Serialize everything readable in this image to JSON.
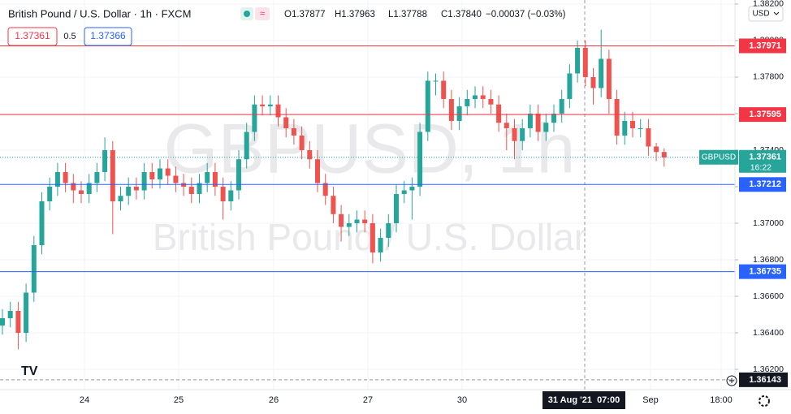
{
  "chart_data": {
    "type": "candlestick",
    "title": "British Pound / U.S. Dollar · 1h · FXCM",
    "ohlc_legend": [
      "O1.37877",
      "H1.37963",
      "L1.37788",
      "C1.37840",
      "−0.00037 (−0.03%)"
    ],
    "trade": {
      "sell": "1.37361",
      "spread": "0.5",
      "buy": "1.37366"
    },
    "currency": "USD",
    "watermark": [
      "GBPUSD, 1h",
      "British Pound / U.S. Dollar"
    ],
    "up_color": "#26a69a",
    "down_color": "#ef5350",
    "open": [
      1.3644,
      1.3648,
      1.3652,
      1.364,
      1.3662,
      1.3688,
      1.3712,
      1.372,
      1.3728,
      1.3722,
      1.3718,
      1.3716,
      1.3722,
      1.3728,
      1.374,
      1.3712,
      1.3715,
      1.372,
      1.3718,
      1.3728,
      1.3724,
      1.373,
      1.3726,
      1.3722,
      1.372,
      1.3716,
      1.3722,
      1.3728,
      1.372,
      1.3712,
      1.3718,
      1.3735,
      1.375,
      1.3765,
      1.3764,
      1.3765,
      1.3758,
      1.3752,
      1.3748,
      1.374,
      1.3735,
      1.3722,
      1.3715,
      1.3705,
      1.3698,
      1.37,
      1.3702,
      1.37,
      1.3684,
      1.3692,
      1.37,
      1.3716,
      1.3718,
      1.372,
      1.375,
      1.3778,
      1.3778,
      1.3768,
      1.3756,
      1.3764,
      1.3768,
      1.377,
      1.3768,
      1.3765,
      1.3755,
      1.3752,
      1.3745,
      1.3752,
      1.376,
      1.375,
      1.3755,
      1.376,
      1.3768,
      1.3782,
      1.3796,
      1.378,
      1.3774,
      1.379,
      1.3768,
      1.3748,
      1.3756,
      1.3752,
      1.3752,
      1.3742,
      1.3739
    ],
    "high": [
      1.3653,
      1.3657,
      1.3657,
      1.3667,
      1.3693,
      1.3717,
      1.3725,
      1.3733,
      1.3733,
      1.3727,
      1.3723,
      1.3727,
      1.3733,
      1.3747,
      1.3745,
      1.372,
      1.3725,
      1.3725,
      1.3733,
      1.3733,
      1.3735,
      1.3735,
      1.3731,
      1.3727,
      1.3725,
      1.3727,
      1.3733,
      1.3733,
      1.3725,
      1.3723,
      1.374,
      1.3755,
      1.377,
      1.377,
      1.377,
      1.377,
      1.3763,
      1.3757,
      1.3753,
      1.3745,
      1.374,
      1.3727,
      1.372,
      1.371,
      1.3705,
      1.3707,
      1.3707,
      1.3705,
      1.3697,
      1.3705,
      1.3721,
      1.3723,
      1.3725,
      1.3755,
      1.3783,
      1.3782,
      1.3783,
      1.3773,
      1.3769,
      1.3773,
      1.3775,
      1.3775,
      1.3773,
      1.377,
      1.376,
      1.3757,
      1.3757,
      1.3765,
      1.3765,
      1.376,
      1.3765,
      1.3773,
      1.3787,
      1.38,
      1.38,
      1.3785,
      1.3806,
      1.3795,
      1.3773,
      1.3761,
      1.3761,
      1.3757,
      1.3757,
      1.3744,
      1.3741
    ],
    "low": [
      1.3639,
      1.3643,
      1.3631,
      1.3635,
      1.3657,
      1.3683,
      1.3707,
      1.3715,
      1.3717,
      1.3711,
      1.3711,
      1.3711,
      1.3717,
      1.3723,
      1.3694,
      1.3707,
      1.371,
      1.3713,
      1.3713,
      1.3719,
      1.3719,
      1.3721,
      1.3717,
      1.3715,
      1.3711,
      1.3711,
      1.3717,
      1.3715,
      1.3702,
      1.3707,
      1.3713,
      1.373,
      1.3745,
      1.3759,
      1.3759,
      1.3753,
      1.3747,
      1.3743,
      1.3735,
      1.373,
      1.3717,
      1.371,
      1.37,
      1.369,
      1.3693,
      1.3695,
      1.3695,
      1.3678,
      1.3679,
      1.3687,
      1.3695,
      1.3711,
      1.3702,
      1.3715,
      1.3745,
      1.377,
      1.3763,
      1.3751,
      1.3751,
      1.3759,
      1.3763,
      1.3763,
      1.376,
      1.375,
      1.374,
      1.3735,
      1.374,
      1.3747,
      1.3745,
      1.3745,
      1.375,
      1.3755,
      1.3763,
      1.3777,
      1.3775,
      1.3765,
      1.3769,
      1.376,
      1.3743,
      1.3743,
      1.3747,
      1.3747,
      1.3737,
      1.3734,
      1.3731
    ],
    "close": [
      1.3648,
      1.3652,
      1.364,
      1.3662,
      1.3688,
      1.3712,
      1.372,
      1.3728,
      1.3722,
      1.3718,
      1.3716,
      1.3722,
      1.3728,
      1.374,
      1.3712,
      1.3715,
      1.372,
      1.3718,
      1.3728,
      1.3724,
      1.373,
      1.3726,
      1.3722,
      1.372,
      1.3716,
      1.3722,
      1.3728,
      1.372,
      1.3712,
      1.3718,
      1.3735,
      1.375,
      1.3765,
      1.3764,
      1.3765,
      1.3758,
      1.3752,
      1.3748,
      1.374,
      1.3735,
      1.3722,
      1.3715,
      1.3705,
      1.3698,
      1.37,
      1.3702,
      1.37,
      1.3684,
      1.3692,
      1.37,
      1.3716,
      1.3718,
      1.372,
      1.375,
      1.3778,
      1.3778,
      1.3768,
      1.3756,
      1.3764,
      1.3768,
      1.377,
      1.3768,
      1.3765,
      1.3755,
      1.3752,
      1.3745,
      1.3752,
      1.376,
      1.375,
      1.3755,
      1.376,
      1.3768,
      1.3782,
      1.3796,
      1.378,
      1.3774,
      1.379,
      1.3768,
      1.3748,
      1.3756,
      1.3752,
      1.3752,
      1.3742,
      1.3739,
      1.3736
    ],
    "ylim": [
      1.36089,
      1.38222
    ],
    "yticks": [
      {
        "value": 1.382,
        "label": "1.38200"
      },
      {
        "value": 1.38,
        "label": "1.38000"
      },
      {
        "value": 1.378,
        "label": "1.37800"
      },
      {
        "value": 1.376,
        "label": "1.37600"
      },
      {
        "value": 1.374,
        "label": "1.37400"
      },
      {
        "value": 1.372,
        "label": "1.37200"
      },
      {
        "value": 1.37,
        "label": "1.37000"
      },
      {
        "value": 1.368,
        "label": "1.36800"
      },
      {
        "value": 1.366,
        "label": "1.36600"
      },
      {
        "value": 1.364,
        "label": "1.36400"
      },
      {
        "value": 1.362,
        "label": "1.36200"
      }
    ],
    "x_labels": [
      "24",
      "25",
      "26",
      "27",
      "30",
      "Sep",
      "18:00"
    ],
    "crosshair_label": "31 Aug '21  07:00",
    "levels": [
      {
        "value": 1.37971,
        "color": "#f23645"
      },
      {
        "value": 1.37595,
        "color": "#f23645"
      },
      {
        "value": 1.37212,
        "color": "#2962ff"
      },
      {
        "value": 1.36735,
        "color": "#2962ff"
      }
    ],
    "last_price": {
      "name": "GBPUSD",
      "value": 1.37361,
      "countdown": "16:22",
      "color": "#26a69a"
    },
    "crosshair_price": 1.36143,
    "grid": true
  }
}
